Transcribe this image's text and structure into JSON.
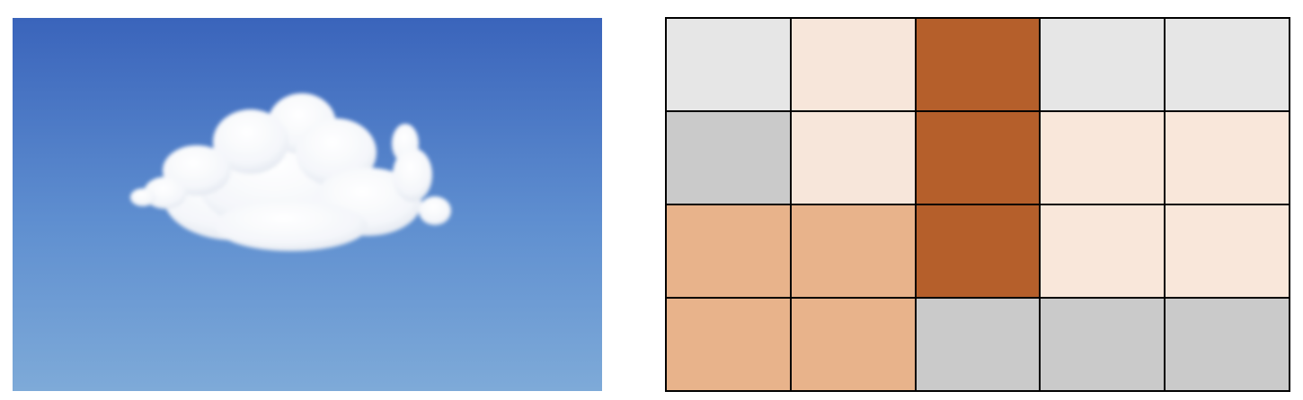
{
  "photo": {
    "subject": "cloud-icon",
    "sky_top_color": "#3a64bb",
    "sky_bottom_color": "#7eaad8"
  },
  "grid": {
    "rows": 4,
    "columns": 5,
    "cells": [
      [
        "#e6e6e6",
        "#f7e6da",
        "#b55f2b",
        "#e6e6e6",
        "#e6e6e6"
      ],
      [
        "#cacaca",
        "#f7e6da",
        "#b55f2b",
        "#f9e7da",
        "#f9e7da"
      ],
      [
        "#e8b38b",
        "#e8b38b",
        "#b55f2b",
        "#f9e7da",
        "#f9e7da"
      ],
      [
        "#e8b38b",
        "#e8b38b",
        "#cacaca",
        "#cacaca",
        "#cacaca"
      ]
    ]
  }
}
